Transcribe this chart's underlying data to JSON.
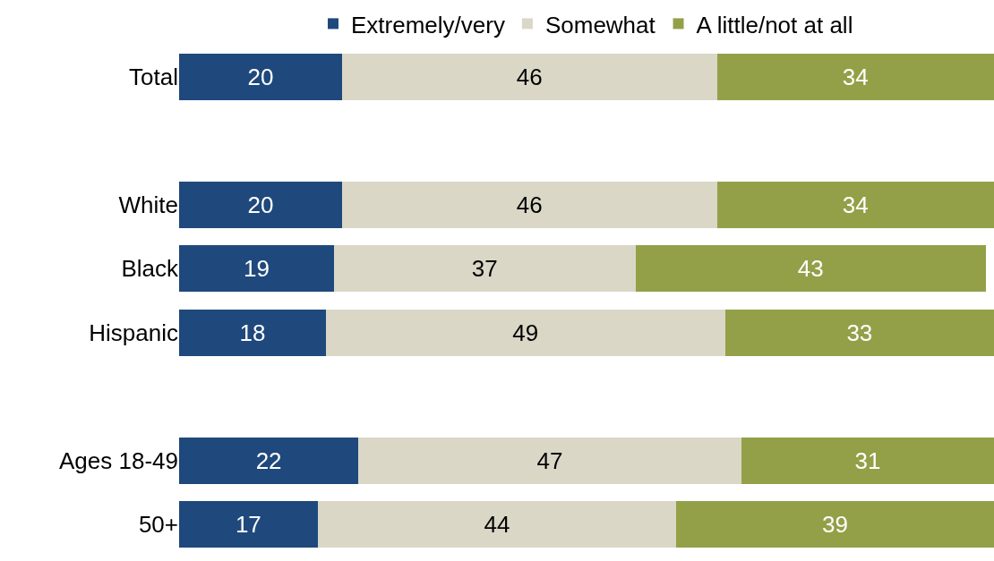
{
  "chart_data": {
    "type": "bar",
    "orientation": "horizontal",
    "stacked": true,
    "data_labels": true,
    "legend": "top",
    "categories": [
      "Total",
      null,
      "White",
      "Black",
      "Hispanic",
      null,
      "Ages 18-49",
      "50+"
    ],
    "series": [
      {
        "name": "Extremely/very",
        "color": "#1f497d",
        "values": [
          20,
          null,
          20,
          19,
          18,
          null,
          22,
          17
        ]
      },
      {
        "name": "Somewhat",
        "color": "#dad7c7",
        "values": [
          46,
          null,
          46,
          37,
          49,
          null,
          47,
          44
        ]
      },
      {
        "name": "A little/not at all",
        "color": "#93a048",
        "values": [
          34,
          null,
          34,
          43,
          33,
          null,
          31,
          39
        ]
      }
    ]
  }
}
